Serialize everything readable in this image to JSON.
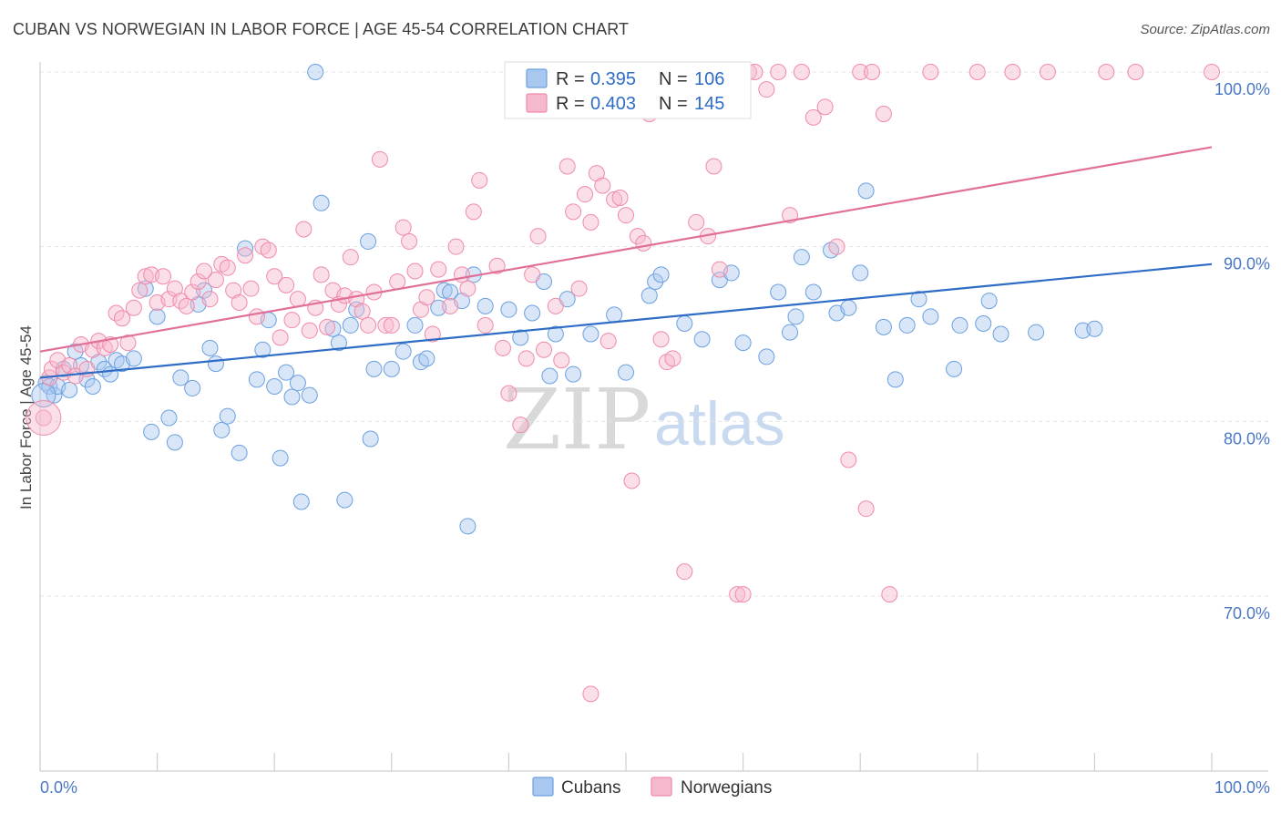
{
  "title": "CUBAN VS NORWEGIAN IN LABOR FORCE | AGE 45-54 CORRELATION CHART",
  "source": "Source: ZipAtlas.com",
  "watermark": {
    "zip": "ZIP",
    "atlas": "atlas"
  },
  "legend": {
    "r_label": "R =",
    "n_label": "N =",
    "rows": [
      {
        "r": "0.395",
        "n": "106",
        "color": "#a8c8f0"
      },
      {
        "r": "0.403",
        "n": "145",
        "color": "#f6b8cc"
      }
    ]
  },
  "bottom_legend": [
    "Cubans",
    "Norwegians"
  ],
  "chart_data": {
    "type": "scatter",
    "title": "CUBAN VS NORWEGIAN IN LABOR FORCE | AGE 45-54 CORRELATION CHART",
    "xlabel": "",
    "ylabel": "In Labor Force | Age 45-54",
    "xlim": [
      0,
      100
    ],
    "ylim": [
      60,
      100
    ],
    "x_tick_labels": [
      "0.0%",
      "100.0%"
    ],
    "y_tick_labels": [
      "100.0%",
      "90.0%",
      "80.0%",
      "70.0%"
    ],
    "y_ticks": [
      100,
      90,
      80,
      70
    ],
    "grid": true,
    "legend_position": "top-center",
    "series": [
      {
        "name": "Cubans",
        "color": "#6aa0e0",
        "fill": "#a8c8f0",
        "line_color": "#2f6cc6",
        "trend": {
          "x": [
            0,
            100
          ],
          "y": [
            82.5,
            89.0
          ]
        },
        "points": [
          [
            0.5,
            82.2
          ],
          [
            0.8,
            82.0
          ],
          [
            1.2,
            81.5
          ],
          [
            1.5,
            82.0
          ],
          [
            2.0,
            83.0
          ],
          [
            2.5,
            81.8
          ],
          [
            3.0,
            84.0
          ],
          [
            3.5,
            83.2
          ],
          [
            4.0,
            82.4
          ],
          [
            4.5,
            82.0
          ],
          [
            5.0,
            83.4
          ],
          [
            5.5,
            83.0
          ],
          [
            6.0,
            82.7
          ],
          [
            6.5,
            83.5
          ],
          [
            7.0,
            83.3
          ],
          [
            8.0,
            83.6
          ],
          [
            9.0,
            87.6
          ],
          [
            9.5,
            79.4
          ],
          [
            10.0,
            86.0
          ],
          [
            11.0,
            80.2
          ],
          [
            11.5,
            78.8
          ],
          [
            12.0,
            82.5
          ],
          [
            13.0,
            81.9
          ],
          [
            13.5,
            86.7
          ],
          [
            14.0,
            87.5
          ],
          [
            14.5,
            84.2
          ],
          [
            15.0,
            83.3
          ],
          [
            15.5,
            79.5
          ],
          [
            16.0,
            80.3
          ],
          [
            17.0,
            78.2
          ],
          [
            17.5,
            89.9
          ],
          [
            18.5,
            82.4
          ],
          [
            19.0,
            84.1
          ],
          [
            19.5,
            85.8
          ],
          [
            20.0,
            82.0
          ],
          [
            20.5,
            77.9
          ],
          [
            21.0,
            82.8
          ],
          [
            21.5,
            81.4
          ],
          [
            22.0,
            82.2
          ],
          [
            22.3,
            75.4
          ],
          [
            23.0,
            81.5
          ],
          [
            23.5,
            100.0
          ],
          [
            24.0,
            92.5
          ],
          [
            25.0,
            85.3
          ],
          [
            25.5,
            84.5
          ],
          [
            26.0,
            75.5
          ],
          [
            26.5,
            85.5
          ],
          [
            27.0,
            86.4
          ],
          [
            28.0,
            90.3
          ],
          [
            28.2,
            79.0
          ],
          [
            28.5,
            83.0
          ],
          [
            30.0,
            83.0
          ],
          [
            31.0,
            84.0
          ],
          [
            32.0,
            85.5
          ],
          [
            32.5,
            83.4
          ],
          [
            33.0,
            83.6
          ],
          [
            34.0,
            86.5
          ],
          [
            34.5,
            87.5
          ],
          [
            35.0,
            87.4
          ],
          [
            36.0,
            86.9
          ],
          [
            36.5,
            74.0
          ],
          [
            37.0,
            88.4
          ],
          [
            38.0,
            86.6
          ],
          [
            40.0,
            86.4
          ],
          [
            41.0,
            84.8
          ],
          [
            42.0,
            86.2
          ],
          [
            43.0,
            88.0
          ],
          [
            43.5,
            82.6
          ],
          [
            44.0,
            85.0
          ],
          [
            45.0,
            87.0
          ],
          [
            45.5,
            82.7
          ],
          [
            47.0,
            85.0
          ],
          [
            49.0,
            86.1
          ],
          [
            50.0,
            82.8
          ],
          [
            52.0,
            87.2
          ],
          [
            52.5,
            88.0
          ],
          [
            53.0,
            88.4
          ],
          [
            55.0,
            85.6
          ],
          [
            56.5,
            84.7
          ],
          [
            58.0,
            88.1
          ],
          [
            59.0,
            88.5
          ],
          [
            60.0,
            84.5
          ],
          [
            62.0,
            83.7
          ],
          [
            63.0,
            87.4
          ],
          [
            64.0,
            85.1
          ],
          [
            64.5,
            86.0
          ],
          [
            65.0,
            89.4
          ],
          [
            66.0,
            87.4
          ],
          [
            67.5,
            89.8
          ],
          [
            68.0,
            86.2
          ],
          [
            69.0,
            86.5
          ],
          [
            70.0,
            88.5
          ],
          [
            70.5,
            93.2
          ],
          [
            72.0,
            85.4
          ],
          [
            73.0,
            82.4
          ],
          [
            74.0,
            85.5
          ],
          [
            75.0,
            87.0
          ],
          [
            76.0,
            86.0
          ],
          [
            78.0,
            83.0
          ],
          [
            78.5,
            85.5
          ],
          [
            80.5,
            85.6
          ],
          [
            81.0,
            86.9
          ],
          [
            82.0,
            85.0
          ],
          [
            85.0,
            85.1
          ],
          [
            89.0,
            85.2
          ],
          [
            90.0,
            85.3
          ]
        ]
      },
      {
        "name": "Norwegians",
        "color": "#f08aaa",
        "fill": "#f6b8cc",
        "line_color": "#e0709a",
        "trend": {
          "x": [
            0,
            100
          ],
          "y": [
            84.0,
            95.7
          ]
        },
        "points": [
          [
            0.3,
            80.2
          ],
          [
            0.8,
            82.5
          ],
          [
            1.0,
            83.0
          ],
          [
            1.5,
            83.5
          ],
          [
            2.0,
            82.8
          ],
          [
            2.5,
            83.2
          ],
          [
            3.0,
            82.6
          ],
          [
            3.5,
            84.4
          ],
          [
            4.0,
            83.0
          ],
          [
            4.5,
            84.1
          ],
          [
            5.0,
            84.6
          ],
          [
            5.5,
            84.2
          ],
          [
            6.0,
            84.4
          ],
          [
            6.5,
            86.2
          ],
          [
            7.0,
            85.9
          ],
          [
            7.5,
            84.5
          ],
          [
            8.0,
            86.5
          ],
          [
            8.5,
            87.5
          ],
          [
            9.0,
            88.3
          ],
          [
            9.5,
            88.4
          ],
          [
            10.0,
            86.8
          ],
          [
            10.5,
            88.3
          ],
          [
            11.0,
            87.0
          ],
          [
            11.5,
            87.6
          ],
          [
            12.0,
            86.9
          ],
          [
            12.5,
            86.6
          ],
          [
            13.0,
            87.4
          ],
          [
            13.5,
            88.0
          ],
          [
            14.0,
            88.6
          ],
          [
            14.5,
            87.0
          ],
          [
            15.0,
            88.1
          ],
          [
            15.5,
            89.0
          ],
          [
            16.0,
            88.8
          ],
          [
            16.5,
            87.5
          ],
          [
            17.0,
            86.8
          ],
          [
            17.5,
            89.5
          ],
          [
            18.0,
            87.6
          ],
          [
            18.5,
            86.0
          ],
          [
            19.0,
            90.0
          ],
          [
            19.5,
            89.8
          ],
          [
            20.0,
            88.3
          ],
          [
            20.5,
            84.8
          ],
          [
            21.0,
            87.8
          ],
          [
            21.5,
            85.8
          ],
          [
            22.0,
            87.0
          ],
          [
            22.5,
            91.0
          ],
          [
            23.0,
            85.2
          ],
          [
            23.5,
            86.5
          ],
          [
            24.0,
            88.4
          ],
          [
            24.5,
            85.4
          ],
          [
            25.0,
            87.5
          ],
          [
            25.5,
            86.7
          ],
          [
            26.0,
            87.2
          ],
          [
            26.5,
            89.4
          ],
          [
            27.0,
            87.0
          ],
          [
            27.5,
            86.3
          ],
          [
            28.0,
            85.5
          ],
          [
            28.5,
            87.4
          ],
          [
            29.0,
            95.0
          ],
          [
            29.5,
            85.5
          ],
          [
            30.0,
            85.5
          ],
          [
            30.5,
            88.0
          ],
          [
            31.0,
            91.1
          ],
          [
            31.5,
            90.3
          ],
          [
            32.0,
            88.6
          ],
          [
            32.5,
            86.4
          ],
          [
            33.0,
            87.1
          ],
          [
            33.5,
            85.0
          ],
          [
            34.0,
            88.7
          ],
          [
            35.0,
            86.6
          ],
          [
            35.5,
            90.0
          ],
          [
            36.0,
            88.4
          ],
          [
            36.5,
            87.6
          ],
          [
            37.0,
            92.0
          ],
          [
            37.5,
            93.8
          ],
          [
            38.0,
            85.5
          ],
          [
            39.0,
            88.9
          ],
          [
            39.5,
            84.2
          ],
          [
            40.0,
            81.6
          ],
          [
            41.0,
            79.8
          ],
          [
            41.5,
            83.6
          ],
          [
            42.0,
            88.4
          ],
          [
            42.5,
            90.6
          ],
          [
            43.0,
            84.1
          ],
          [
            44.0,
            86.6
          ],
          [
            44.5,
            83.5
          ],
          [
            45.0,
            94.6
          ],
          [
            45.5,
            92.0
          ],
          [
            46.0,
            87.6
          ],
          [
            46.5,
            93.0
          ],
          [
            47.0,
            91.4
          ],
          [
            47.5,
            94.2
          ],
          [
            48.0,
            93.5
          ],
          [
            48.5,
            84.6
          ],
          [
            49.0,
            92.7
          ],
          [
            49.5,
            92.8
          ],
          [
            50.0,
            91.8
          ],
          [
            50.5,
            76.6
          ],
          [
            51.0,
            90.6
          ],
          [
            51.5,
            90.2
          ],
          [
            52.0,
            97.6
          ],
          [
            53.0,
            84.7
          ],
          [
            53.5,
            83.4
          ],
          [
            54.0,
            83.6
          ],
          [
            55.0,
            71.4
          ],
          [
            56.0,
            91.4
          ],
          [
            57.0,
            90.6
          ],
          [
            57.5,
            94.6
          ],
          [
            58.0,
            88.7
          ],
          [
            59.0,
            100.0
          ],
          [
            59.5,
            70.1
          ],
          [
            60.0,
            70.1
          ],
          [
            60.5,
            100.0
          ],
          [
            61.0,
            100.0
          ],
          [
            62.0,
            99.0
          ],
          [
            63.0,
            100.0
          ],
          [
            64.0,
            91.8
          ],
          [
            65.0,
            100.0
          ],
          [
            66.0,
            97.4
          ],
          [
            67.0,
            98.0
          ],
          [
            68.0,
            90.0
          ],
          [
            69.0,
            77.8
          ],
          [
            70.0,
            100.0
          ],
          [
            70.5,
            75.0
          ],
          [
            71.0,
            100.0
          ],
          [
            72.0,
            97.6
          ],
          [
            72.5,
            70.1
          ],
          [
            76.0,
            100.0
          ],
          [
            80.0,
            100.0
          ],
          [
            83.0,
            100.0
          ],
          [
            86.0,
            100.0
          ],
          [
            91.0,
            100.0
          ],
          [
            93.5,
            100.0
          ],
          [
            100.0,
            100.0
          ],
          [
            47.0,
            64.4
          ]
        ]
      }
    ]
  }
}
